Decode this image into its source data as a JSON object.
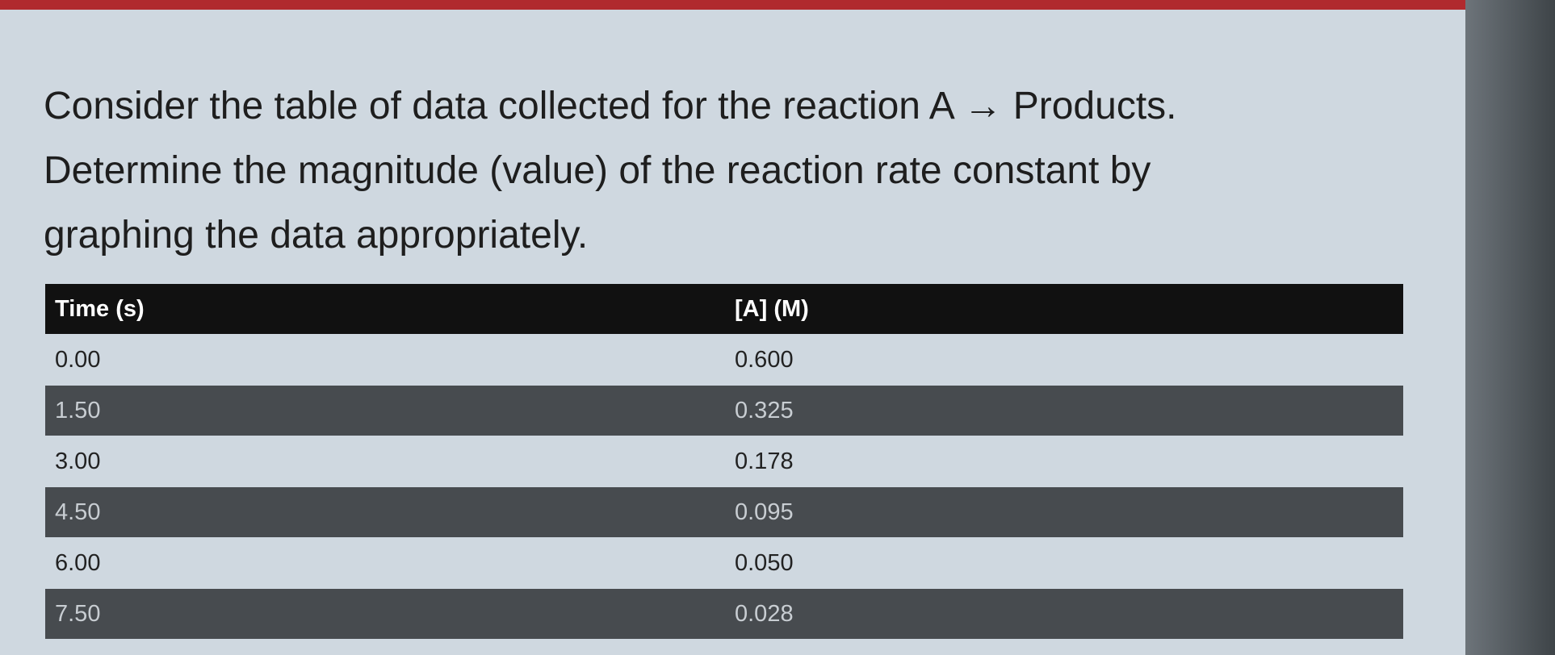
{
  "question": {
    "lines": [
      "Consider the table of data collected for the reaction A → Products.",
      "Determine the magnitude (value) of the reaction rate constant by",
      "graphing the data appropriately."
    ]
  },
  "table": {
    "headers": [
      "Time (s)",
      "[A] (M)"
    ],
    "rows": [
      [
        "0.00",
        "0.600"
      ],
      [
        "1.50",
        "0.325"
      ],
      [
        "3.00",
        "0.178"
      ],
      [
        "4.50",
        "0.095"
      ],
      [
        "6.00",
        "0.050"
      ],
      [
        "7.50",
        "0.028"
      ]
    ]
  }
}
